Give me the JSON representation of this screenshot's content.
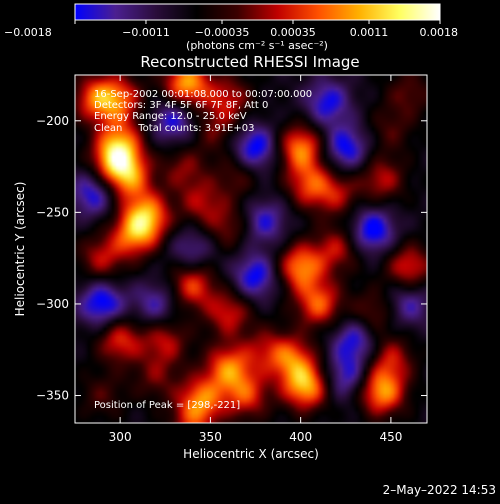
{
  "chart_data": {
    "type": "heatmap",
    "title": "Reconstructed RHESSI Image",
    "xlabel": "Heliocentric X (arcsec)",
    "ylabel": "Heliocentric Y (arcsec)",
    "xlim": [
      275,
      470
    ],
    "ylim": [
      -365,
      -175
    ],
    "xticks": [
      300,
      350,
      400,
      450
    ],
    "yticks": [
      -200,
      -250,
      -300,
      -350
    ],
    "xtick_labels": [
      "300",
      "350",
      "400",
      "450"
    ],
    "ytick_labels": [
      "−200",
      "−250",
      "−300",
      "−350"
    ],
    "colorbar": {
      "range": [
        -0.0018,
        0.0018
      ],
      "tick_values": [
        -0.0018,
        -0.0011,
        -0.00035,
        0.00035,
        0.0011,
        0.0018
      ],
      "tick_labels": [
        "−0.0018",
        "−0.0011",
        "−0.00035",
        "0.00035",
        "0.0011",
        "0.0018"
      ],
      "units_label": "(photons cm⁻² s⁻¹ asec⁻²)",
      "stops": [
        "#0000ff",
        "#4b1f90",
        "#2a0d3a",
        "#000000",
        "#3a0000",
        "#c00000",
        "#ff5000",
        "#ffb000",
        "#ffff60",
        "#ffffff"
      ]
    },
    "annotations": [
      "16-Sep-2002 00:01:08.000 to 00:07:00.000",
      "Detectors: 3F 4F 5F 6F 7F 8F, Att 0",
      "Energy Range: 12.0 - 25.0 keV",
      "Clean     Total counts: 3.91E+03"
    ],
    "peak_label": "Position of Peak = [298,-221]",
    "peak": [
      298,
      -221
    ],
    "blobs": [
      {
        "x": 287,
        "y": -188,
        "v": 0.0013
      },
      {
        "x": 300,
        "y": -188,
        "v": 0.0011
      },
      {
        "x": 337,
        "y": -180,
        "v": 0.0017
      },
      {
        "x": 360,
        "y": -188,
        "v": 0.0009
      },
      {
        "x": 298,
        "y": -221,
        "v": 0.0018
      },
      {
        "x": 305,
        "y": -232,
        "v": 0.0012
      },
      {
        "x": 335,
        "y": -226,
        "v": 0.0007
      },
      {
        "x": 352,
        "y": -205,
        "v": 0.0006
      },
      {
        "x": 315,
        "y": -252,
        "v": 0.0015
      },
      {
        "x": 308,
        "y": -262,
        "v": 0.0013
      },
      {
        "x": 345,
        "y": -245,
        "v": 0.0008
      },
      {
        "x": 360,
        "y": -258,
        "v": 0.0007
      },
      {
        "x": 400,
        "y": -215,
        "v": 0.0015
      },
      {
        "x": 405,
        "y": -235,
        "v": 0.0011
      },
      {
        "x": 420,
        "y": -240,
        "v": 0.0008
      },
      {
        "x": 445,
        "y": -232,
        "v": 0.0009
      },
      {
        "x": 450,
        "y": -205,
        "v": 0.0005
      },
      {
        "x": 365,
        "y": -230,
        "v": 0.0006
      },
      {
        "x": 290,
        "y": -275,
        "v": 0.0009
      },
      {
        "x": 340,
        "y": -290,
        "v": 0.0012
      },
      {
        "x": 360,
        "y": -305,
        "v": 0.001
      },
      {
        "x": 400,
        "y": -280,
        "v": 0.0015
      },
      {
        "x": 410,
        "y": -300,
        "v": 0.0013
      },
      {
        "x": 420,
        "y": -270,
        "v": 0.0009
      },
      {
        "x": 460,
        "y": -280,
        "v": 0.0011
      },
      {
        "x": 440,
        "y": -305,
        "v": 0.0007
      },
      {
        "x": 300,
        "y": -320,
        "v": 0.0011
      },
      {
        "x": 325,
        "y": -320,
        "v": 0.0009
      },
      {
        "x": 380,
        "y": -325,
        "v": 0.0007
      },
      {
        "x": 360,
        "y": -335,
        "v": 0.0014
      },
      {
        "x": 370,
        "y": -350,
        "v": 0.0011
      },
      {
        "x": 403,
        "y": -345,
        "v": 0.0017
      },
      {
        "x": 395,
        "y": -330,
        "v": 0.0012
      },
      {
        "x": 445,
        "y": -348,
        "v": 0.0016
      },
      {
        "x": 450,
        "y": -330,
        "v": 0.0009
      },
      {
        "x": 345,
        "y": -352,
        "v": 0.0013
      },
      {
        "x": 340,
        "y": -365,
        "v": 0.0008
      },
      {
        "x": 320,
        "y": -340,
        "v": 0.0006
      },
      {
        "x": 290,
        "y": -350,
        "v": 0.0005
      },
      {
        "x": 460,
        "y": -185,
        "v": 0.0006
      },
      {
        "x": 300,
        "y": -210,
        "v": 0.0009
      },
      {
        "x": 330,
        "y": -200,
        "v": -0.001
      },
      {
        "x": 375,
        "y": -215,
        "v": -0.0012
      },
      {
        "x": 425,
        "y": -215,
        "v": -0.0011
      },
      {
        "x": 440,
        "y": -260,
        "v": -0.0012
      },
      {
        "x": 375,
        "y": -285,
        "v": -0.0011
      },
      {
        "x": 290,
        "y": -300,
        "v": -0.0012
      },
      {
        "x": 430,
        "y": -320,
        "v": -0.001
      },
      {
        "x": 320,
        "y": -300,
        "v": -0.0008
      },
      {
        "x": 380,
        "y": -255,
        "v": -0.0009
      },
      {
        "x": 285,
        "y": -240,
        "v": -0.001
      },
      {
        "x": 415,
        "y": -190,
        "v": -0.001
      },
      {
        "x": 340,
        "y": -270,
        "v": -0.0007
      },
      {
        "x": 425,
        "y": -340,
        "v": -0.0009
      },
      {
        "x": 460,
        "y": -300,
        "v": -0.0008
      }
    ]
  },
  "footer": {
    "timestamp": "2–May–2022 14:53"
  }
}
